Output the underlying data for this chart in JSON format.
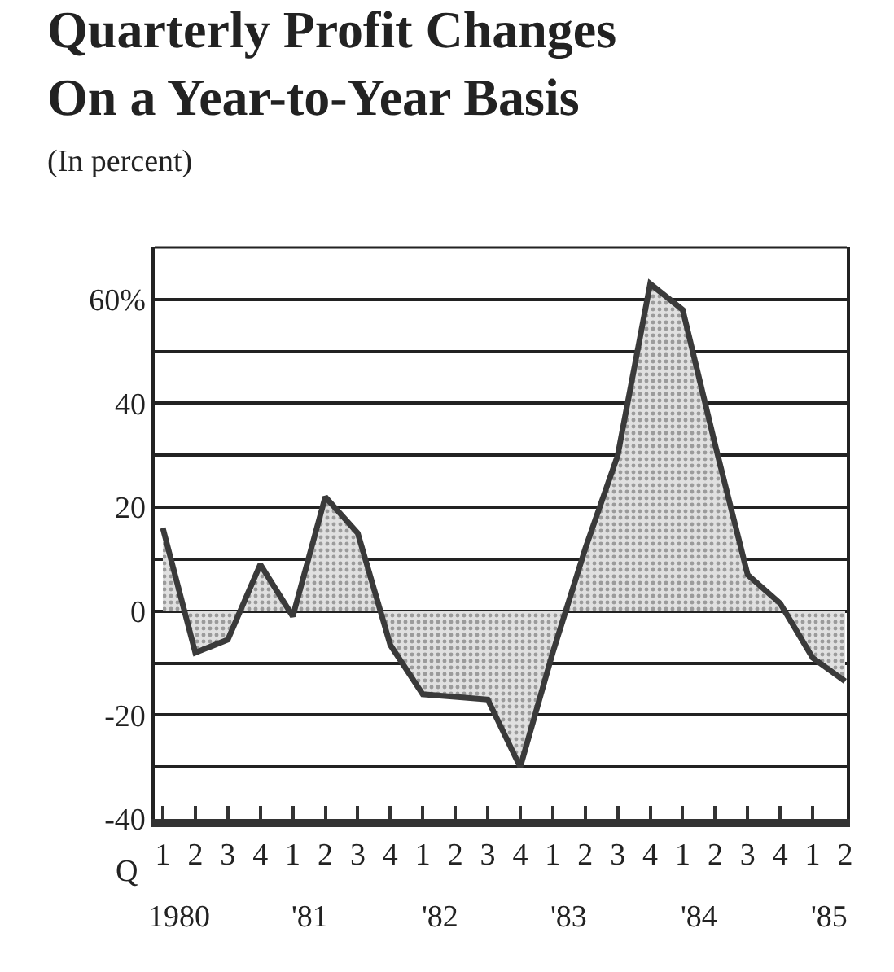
{
  "chart_data": {
    "type": "area",
    "title": "Quarterly Profit Changes\nOn a Year-to-Year Basis",
    "subtitle": "(In percent)",
    "categories": [
      "1",
      "2",
      "3",
      "4",
      "1",
      "2",
      "3",
      "4",
      "1",
      "2",
      "3",
      "4",
      "1",
      "2",
      "3",
      "4",
      "1",
      "2",
      "3",
      "4",
      "1",
      "2"
    ],
    "series": [
      {
        "color": "#3a3a3a",
        "values": [
          16,
          -8,
          -5.5,
          9,
          -1,
          22,
          15,
          -6.5,
          -16,
          -16.5,
          -17,
          -30,
          -8,
          12,
          30,
          63,
          58,
          32,
          7,
          1.5,
          -9,
          -13.5
        ]
      }
    ],
    "ylim": [
      -40,
      70
    ],
    "yticks": [
      {
        "value": -40,
        "label": "-40"
      },
      {
        "value": -30,
        "label": null
      },
      {
        "value": -20,
        "label": "-20"
      },
      {
        "value": -10,
        "label": null
      },
      0,
      {
        "value": 10,
        "label": null
      },
      20,
      {
        "value": 30,
        "label": null
      },
      40,
      {
        "value": 50,
        "label": null
      },
      {
        "value": 60,
        "label": "60%"
      }
    ],
    "annotations": [
      "Q",
      "1980",
      "'81",
      "'82",
      "'83",
      "'84",
      "'85"
    ],
    "grid": "y"
  }
}
